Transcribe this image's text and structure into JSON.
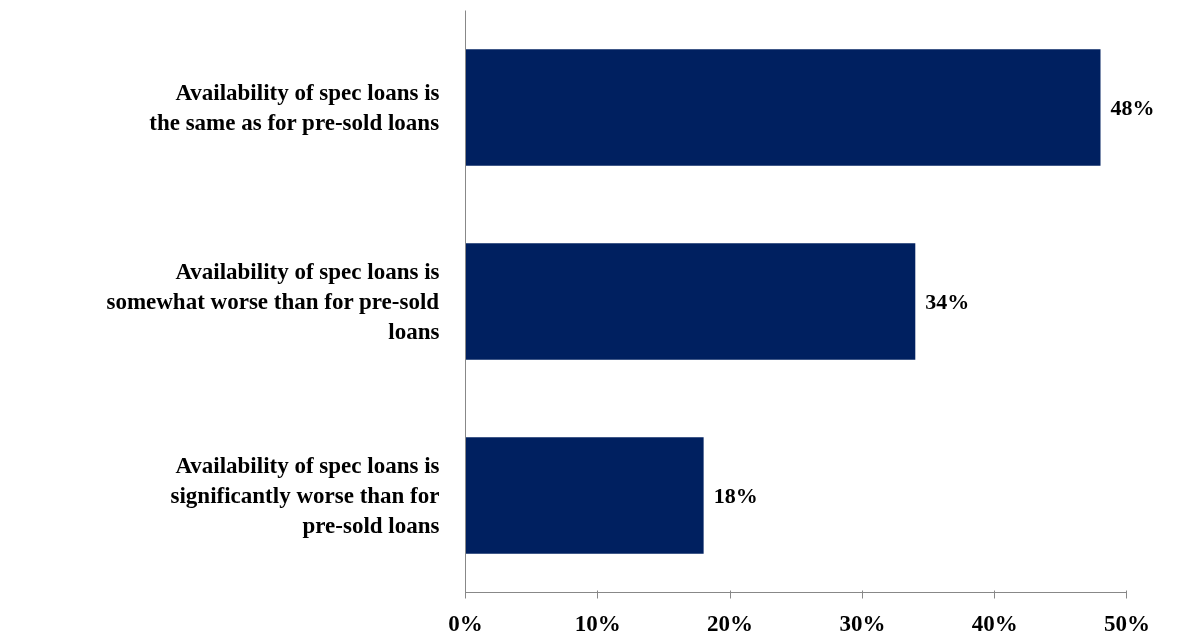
{
  "chart_data": {
    "type": "bar",
    "orientation": "horizontal",
    "categories": [
      "Availability of spec loans is the same as for pre-sold loans",
      "Availability of spec loans is somewhat worse than for pre-sold loans",
      "Availability of spec loans is significantly worse than for pre-sold loans"
    ],
    "values": [
      48,
      34,
      18
    ],
    "color": "#002060",
    "xlim": [
      0,
      50
    ],
    "xticks": [
      {
        "value": 0,
        "label": "0%"
      },
      {
        "value": 10,
        "label": "10%"
      },
      {
        "value": 20,
        "label": "20%"
      },
      {
        "value": 30,
        "label": "30%"
      },
      {
        "value": 40,
        "label": "40%"
      },
      {
        "value": 50,
        "label": "50%"
      }
    ],
    "value_labels": [
      "48%",
      "34%",
      "18%"
    ],
    "grid": false
  }
}
